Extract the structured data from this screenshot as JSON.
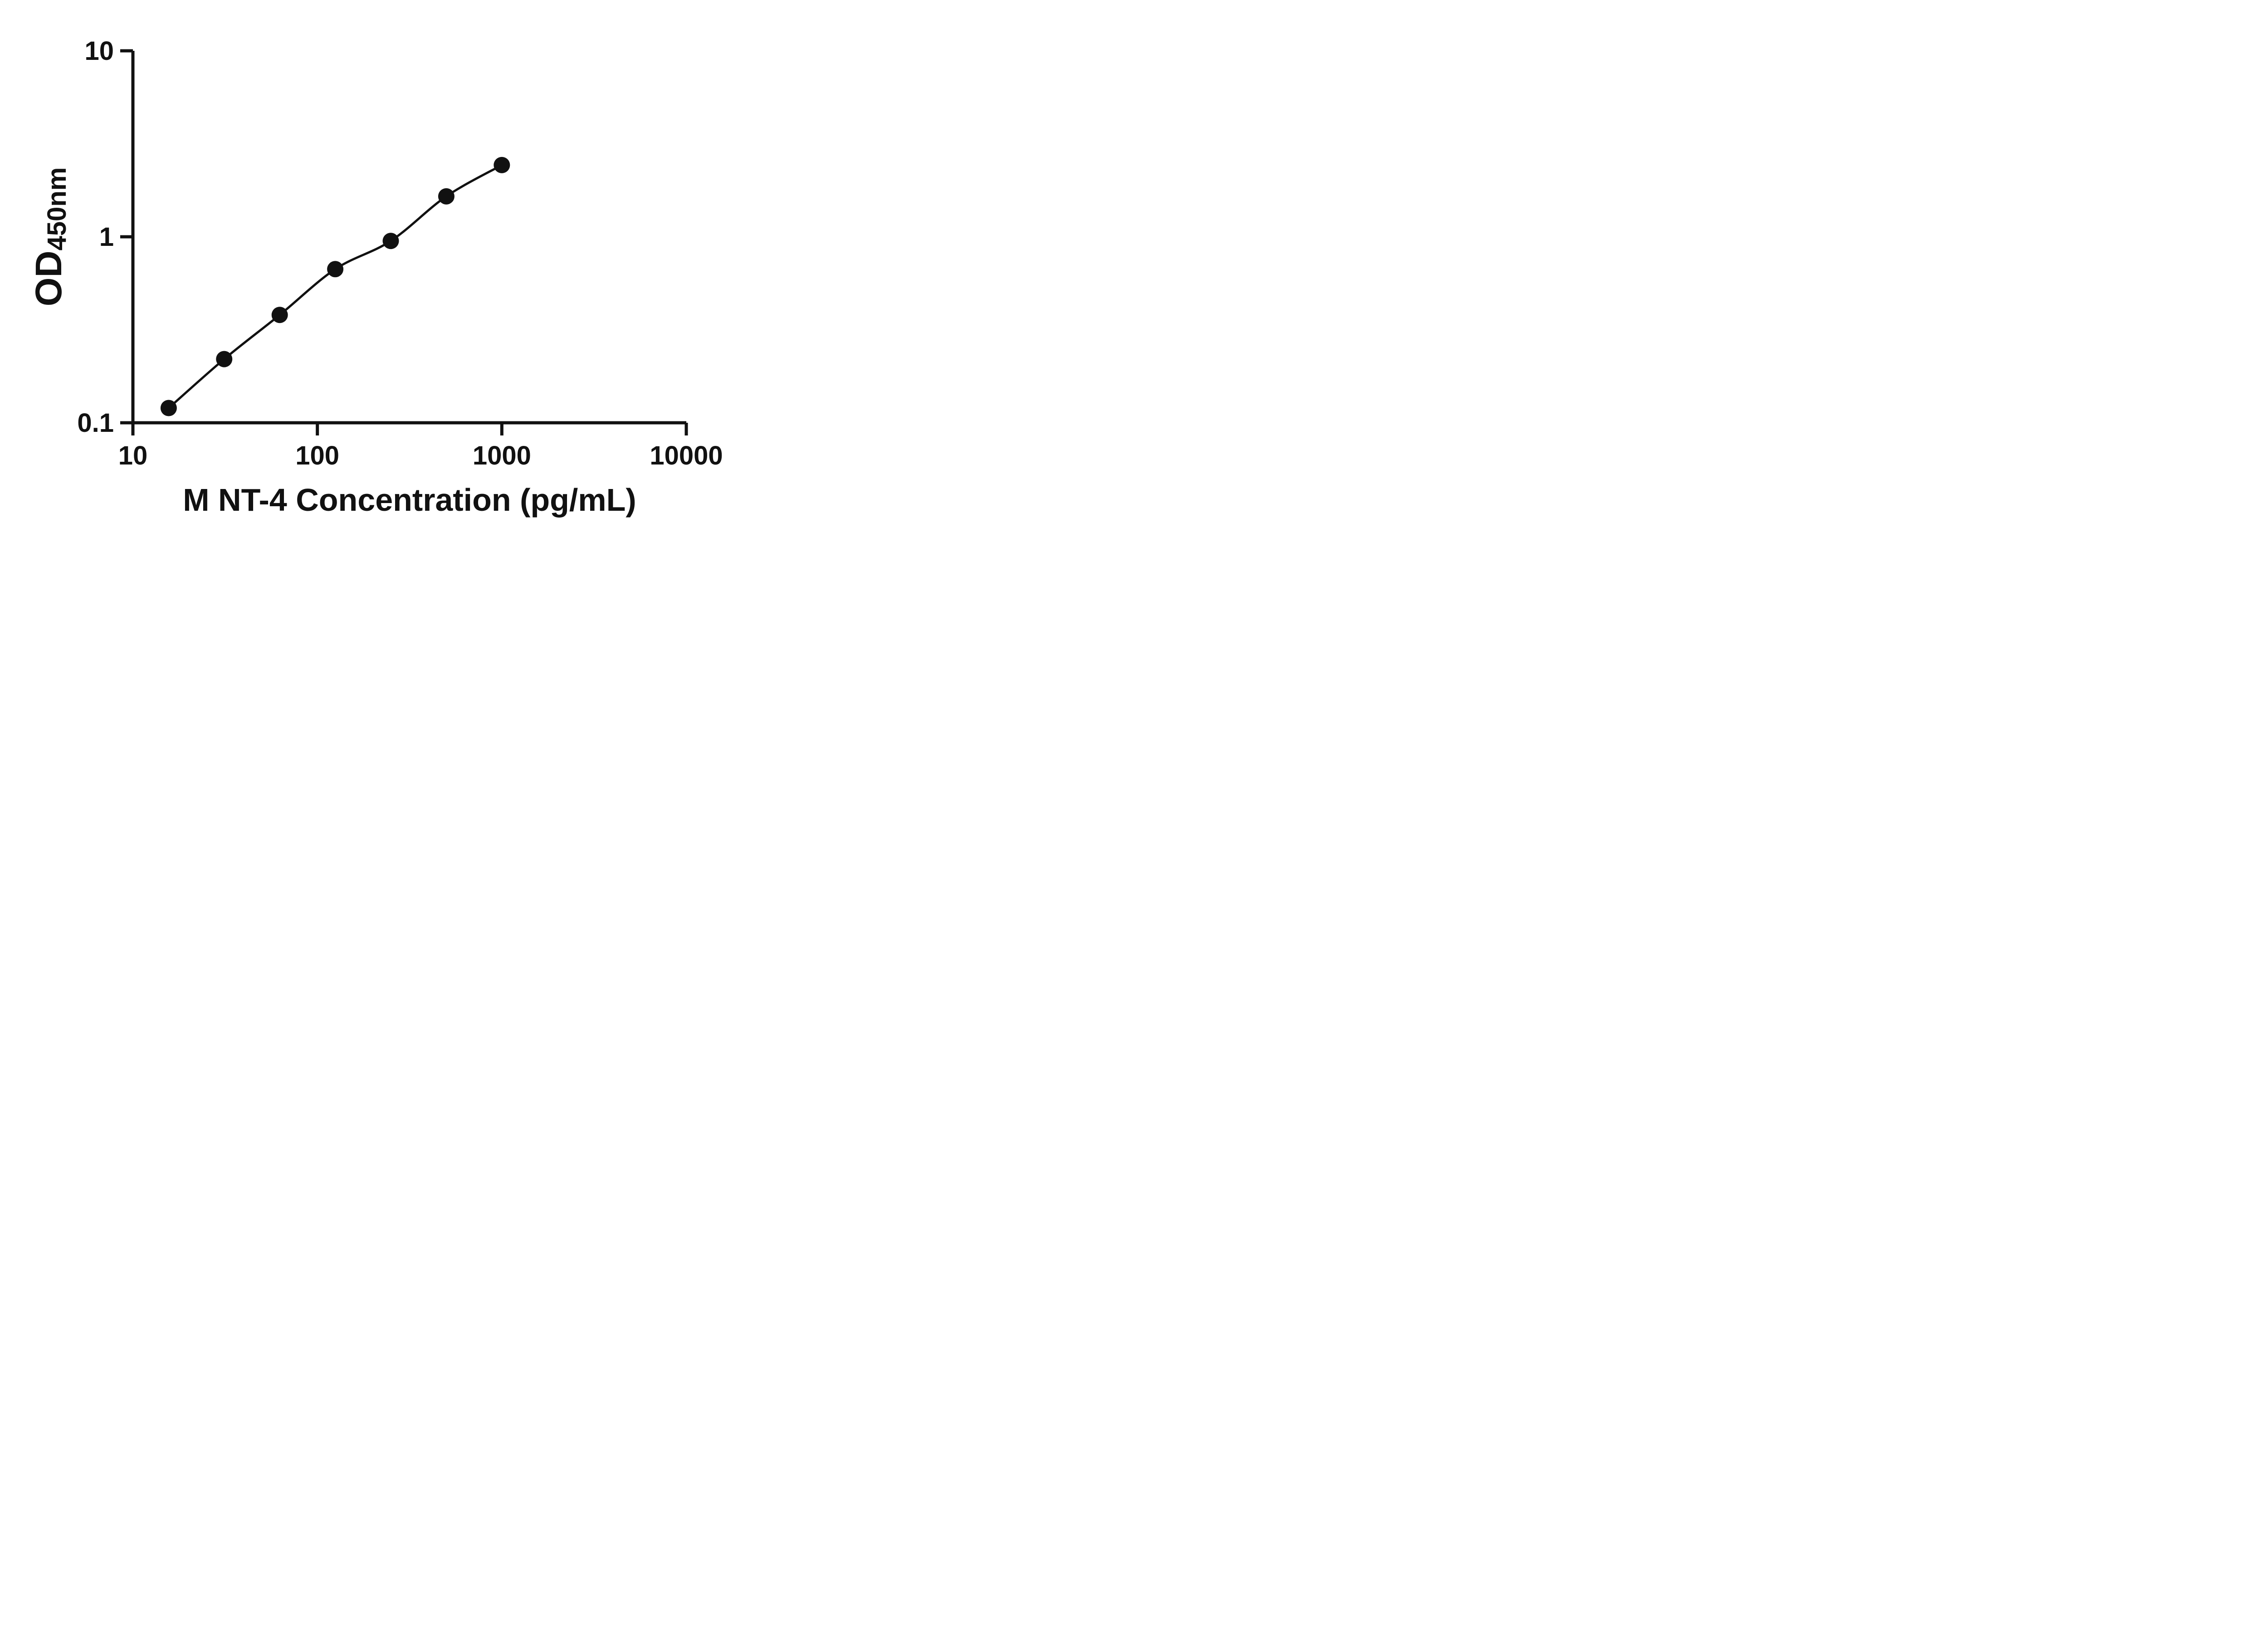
{
  "chart_data": {
    "type": "scatter",
    "title": "",
    "xlabel": "M NT-4 Concentration (pg/mL)",
    "ylabel_main": "OD",
    "ylabel_sub": "450nm",
    "xscale": "log",
    "yscale": "log",
    "xlim": [
      10,
      10000
    ],
    "ylim": [
      0.1,
      10
    ],
    "x": [
      15.63,
      31.25,
      62.5,
      125,
      250,
      500,
      1000
    ],
    "y": [
      0.12,
      0.22,
      0.38,
      0.67,
      0.95,
      1.65,
      2.43
    ],
    "x_ticks": [
      10,
      100,
      1000,
      10000
    ],
    "x_tick_labels": [
      "10",
      "100",
      "1000",
      "10000"
    ],
    "y_ticks": [
      0.1,
      1,
      10
    ],
    "y_tick_labels": [
      "0.1",
      "1",
      "10"
    ],
    "grid": false,
    "legend": null,
    "line_color": "#111111",
    "marker_color": "#111111",
    "background_color": "#ffffff"
  }
}
